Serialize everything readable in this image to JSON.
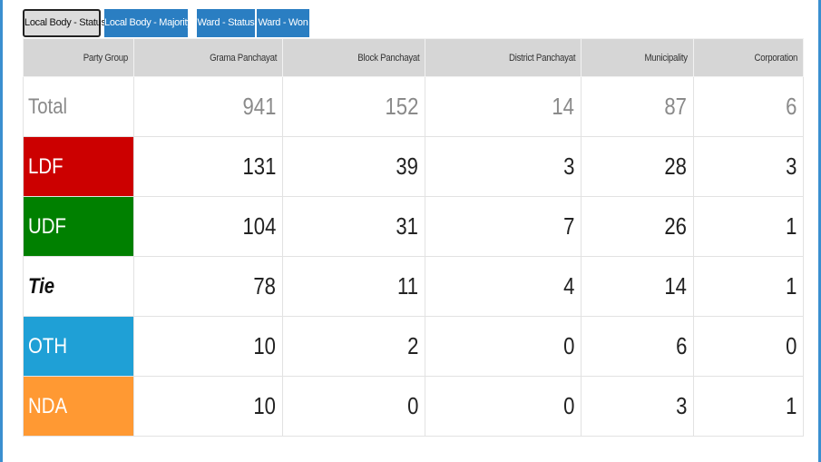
{
  "tabs": [
    {
      "label": "Local Body - Status",
      "active": true
    },
    {
      "label": "Local Body - Majority",
      "active": false
    },
    {
      "label": "Ward - Status",
      "active": false
    },
    {
      "label": "Ward - Won",
      "active": false
    }
  ],
  "table": {
    "headers": [
      "Party Group",
      "Grama Panchayat",
      "Block Panchayat",
      "District Panchayat",
      "Municipality",
      "Corporation"
    ],
    "rows": [
      {
        "party": "Total",
        "values": [
          "941",
          "152",
          "14",
          "87",
          "6"
        ],
        "color": "#ffffff"
      },
      {
        "party": "LDF",
        "values": [
          "131",
          "39",
          "3",
          "28",
          "3"
        ],
        "color": "#cc0000"
      },
      {
        "party": "UDF",
        "values": [
          "104",
          "31",
          "7",
          "26",
          "1"
        ],
        "color": "#008000"
      },
      {
        "party": "Tie",
        "values": [
          "78",
          "11",
          "4",
          "14",
          "1"
        ],
        "color": "#ffffff"
      },
      {
        "party": "OTH",
        "values": [
          "10",
          "2",
          "0",
          "6",
          "0"
        ],
        "color": "#1fa0d6"
      },
      {
        "party": "NDA",
        "values": [
          "10",
          "0",
          "0",
          "3",
          "1"
        ],
        "color": "#ff9933"
      }
    ]
  }
}
